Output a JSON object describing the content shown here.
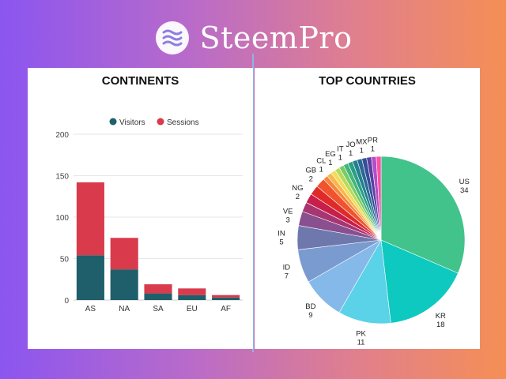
{
  "brand": {
    "name": "SteemPro",
    "logo_icon": "steempro-logo-icon"
  },
  "chart_data": [
    {
      "type": "bar",
      "stacked": true,
      "title": "CONTINENTS",
      "categories": [
        "AS",
        "NA",
        "SA",
        "EU",
        "AF"
      ],
      "series": [
        {
          "name": "Visitors",
          "color": "#1f5f6b",
          "values": [
            54,
            37,
            8,
            6,
            3
          ]
        },
        {
          "name": "Sessions",
          "color": "#d93a4c",
          "values": [
            88,
            38,
            11,
            8,
            3
          ]
        }
      ],
      "ylim": [
        0,
        200
      ],
      "yticks": [
        0,
        50,
        100,
        150,
        200
      ],
      "grid": true,
      "legend_position": "top"
    },
    {
      "type": "pie",
      "title": "TOP COUNTRIES",
      "slices": [
        {
          "label": "US",
          "value": 34,
          "color": "#42c38c",
          "show_label": true
        },
        {
          "label": "KR",
          "value": 18,
          "color": "#0ec9bf",
          "show_label": true
        },
        {
          "label": "PK",
          "value": 11,
          "color": "#5ad2e8",
          "show_label": true
        },
        {
          "label": "BD",
          "value": 9,
          "color": "#84b9ea",
          "show_label": true
        },
        {
          "label": "ID",
          "value": 7,
          "color": "#7a9bd0",
          "show_label": true
        },
        {
          "label": "IN",
          "value": 5,
          "color": "#6f78ad",
          "show_label": true
        },
        {
          "label": "VE",
          "value": 3,
          "color": "#8a4f8f",
          "show_label": true
        },
        {
          "label": "",
          "value": 2,
          "color": "#a63571",
          "show_label": false
        },
        {
          "label": "NG",
          "value": 2,
          "color": "#c81e4a",
          "show_label": true
        },
        {
          "label": "",
          "value": 2,
          "color": "#e02a2a",
          "show_label": false
        },
        {
          "label": "GB",
          "value": 2,
          "color": "#f0532e",
          "show_label": true
        },
        {
          "label": "",
          "value": 1,
          "color": "#f5863a",
          "show_label": false
        },
        {
          "label": "CL",
          "value": 1,
          "color": "#f8b64a",
          "show_label": true
        },
        {
          "label": "",
          "value": 1,
          "color": "#f2dc5a",
          "show_label": false
        },
        {
          "label": "EG",
          "value": 1,
          "color": "#b9d95a",
          "show_label": true
        },
        {
          "label": "",
          "value": 1,
          "color": "#7acb68",
          "show_label": false
        },
        {
          "label": "IT",
          "value": 1,
          "color": "#43b67a",
          "show_label": true
        },
        {
          "label": "",
          "value": 1,
          "color": "#2a9e86",
          "show_label": false
        },
        {
          "label": "JO",
          "value": 1,
          "color": "#22818e",
          "show_label": true
        },
        {
          "label": "",
          "value": 1,
          "color": "#2b6896",
          "show_label": false
        },
        {
          "label": "MX",
          "value": 1,
          "color": "#344f99",
          "show_label": true
        },
        {
          "label": "",
          "value": 1,
          "color": "#5b3f9f",
          "show_label": false
        },
        {
          "label": "PR",
          "value": 1,
          "color": "#b24dc9",
          "show_label": true
        },
        {
          "label": "",
          "value": 1,
          "color": "#ff4fa3",
          "show_label": false
        }
      ]
    }
  ]
}
